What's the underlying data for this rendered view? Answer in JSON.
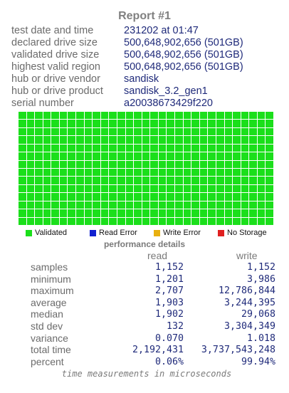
{
  "report": {
    "title": "Report #1"
  },
  "info": [
    {
      "label": "test date and time",
      "value": "231202  at  01:47"
    },
    {
      "label": "declared drive size",
      "value": "500,648,902,656 (501GB)"
    },
    {
      "label": "validated drive size",
      "value": "500,648,902,656 (501GB)"
    },
    {
      "label": "highest valid region",
      "value": "500,648,902,656 (501GB)"
    },
    {
      "label": "hub or drive vendor",
      "value": "sandisk"
    },
    {
      "label": "hub or drive product",
      "value": "sandisk_3.2_gen1"
    },
    {
      "label": "serial number",
      "value": "a20038673429f220"
    }
  ],
  "map": {
    "columns": 31,
    "rows": 14,
    "state": "validated"
  },
  "legend": [
    {
      "label": "Validated",
      "color": "#1bdf1b"
    },
    {
      "label": "Read Error",
      "color": "#1020d0"
    },
    {
      "label": "Write Error",
      "color": "#e8b010"
    },
    {
      "label": "No Storage",
      "color": "#e02020"
    }
  ],
  "performance": {
    "title": "performance details",
    "read_header": "read",
    "write_header": "write",
    "rows": [
      {
        "label": "samples",
        "read": "1,152",
        "write": "1,152"
      },
      {
        "label": "minimum",
        "read": "1,201",
        "write": "3,986"
      },
      {
        "label": "maximum",
        "read": "2,707",
        "write": "12,786,844"
      },
      {
        "label": "average",
        "read": "1,903",
        "write": "3,244,395"
      },
      {
        "label": "median",
        "read": "1,902",
        "write": "29,068"
      },
      {
        "label": "std dev",
        "read": "132",
        "write": "3,304,349"
      },
      {
        "label": "variance",
        "read": "0.070",
        "write": "1.018"
      },
      {
        "label": "total time",
        "read": "2,192,431",
        "write": "3,737,543,248"
      },
      {
        "label": "percent",
        "read": "0.06%",
        "write": "99.94%"
      }
    ],
    "footnote": "time measurements in microseconds"
  }
}
